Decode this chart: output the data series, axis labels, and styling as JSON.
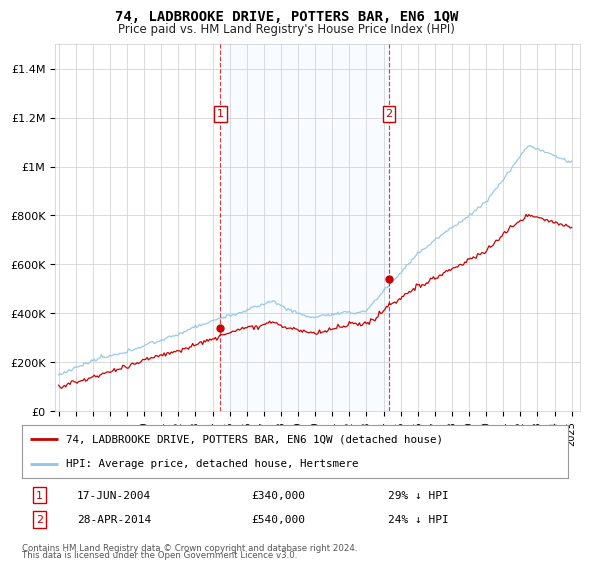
{
  "title": "74, LADBROOKE DRIVE, POTTERS BAR, EN6 1QW",
  "subtitle": "Price paid vs. HM Land Registry's House Price Index (HPI)",
  "hpi_label": "HPI: Average price, detached house, Hertsmere",
  "property_label": "74, LADBROOKE DRIVE, POTTERS BAR, EN6 1QW (detached house)",
  "footer": "Contains HM Land Registry data © Crown copyright and database right 2024.\nThis data is licensed under the Open Government Licence v3.0.",
  "sale1_date": 2004.46,
  "sale1_price": 340000,
  "sale2_date": 2014.32,
  "sale2_price": 540000,
  "hpi_color": "#8ec4e8",
  "property_color": "#cc0000",
  "vline_color": "#cc0000",
  "shade_color": "#ddeeff",
  "grid_color": "#cccccc",
  "background_color": "#ffffff",
  "ylim_max": 1500000,
  "xlim_start": 1994.8,
  "xlim_end": 2025.5,
  "yticks": [
    0,
    200000,
    400000,
    600000,
    800000,
    1000000,
    1200000,
    1400000
  ],
  "ylabels": [
    "£0",
    "£200K",
    "£400K",
    "£600K",
    "£800K",
    "£1M",
    "£1.2M",
    "£1.4M"
  ]
}
